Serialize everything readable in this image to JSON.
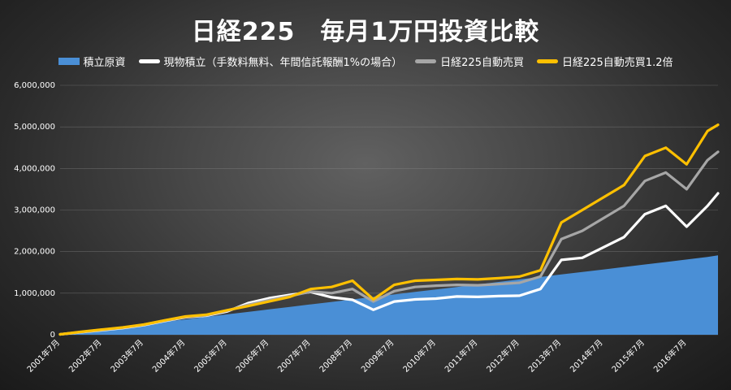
{
  "chart_data": {
    "type": "line",
    "title": "日経225　毎月1万円投資比較",
    "legend_position": "top",
    "grid": true,
    "ylim": [
      0,
      6000000
    ],
    "y_ticks": [
      "0",
      "1,000,000",
      "2,000,000",
      "3,000,000",
      "4,000,000",
      "5,000,000",
      "6,000,000"
    ],
    "x_ticks": [
      "2001年7月",
      "2002年7月",
      "2003年7月",
      "2004年7月",
      "2005年7月",
      "2006年7月",
      "2007年7月",
      "2008年7月",
      "2009年7月",
      "2010年7月",
      "2011年7月",
      "2012年7月",
      "2013年7月",
      "2014年7月",
      "2015年7月",
      "2016年7月"
    ],
    "x": [
      "2001-07",
      "2002-01",
      "2002-07",
      "2003-01",
      "2003-07",
      "2004-01",
      "2004-07",
      "2005-01",
      "2005-07",
      "2006-01",
      "2006-07",
      "2007-01",
      "2007-07",
      "2008-01",
      "2008-07",
      "2009-01",
      "2009-07",
      "2010-01",
      "2010-07",
      "2011-01",
      "2011-07",
      "2012-01",
      "2012-07",
      "2013-01",
      "2013-07",
      "2014-01",
      "2014-07",
      "2015-01",
      "2015-07",
      "2016-01",
      "2016-07",
      "2017-01",
      "2017-04"
    ],
    "series": [
      {
        "name": "積立原資",
        "kind": "area",
        "color": "#4a8fd6",
        "values": [
          10000,
          70000,
          130000,
          190000,
          250000,
          310000,
          370000,
          430000,
          490000,
          550000,
          610000,
          670000,
          730000,
          790000,
          850000,
          910000,
          970000,
          1030000,
          1090000,
          1150000,
          1210000,
          1270000,
          1330000,
          1390000,
          1450000,
          1510000,
          1570000,
          1630000,
          1690000,
          1750000,
          1810000,
          1870000,
          1910000
        ]
      },
      {
        "name": "現物積立（手数料無料、年間信託報酬1%の場合）",
        "kind": "line",
        "color": "#ffffff",
        "values": [
          10000,
          60000,
          110000,
          160000,
          230000,
          330000,
          420000,
          460000,
          560000,
          760000,
          880000,
          960000,
          1030000,
          900000,
          840000,
          600000,
          800000,
          850000,
          870000,
          920000,
          910000,
          930000,
          940000,
          1100000,
          1800000,
          1850000,
          2100000,
          2350000,
          2900000,
          3100000,
          2600000,
          3100000,
          3400000
        ]
      },
      {
        "name": "日経225自動売買",
        "kind": "line",
        "color": "#a6a6a6",
        "values": [
          10000,
          65000,
          120000,
          170000,
          240000,
          340000,
          430000,
          470000,
          580000,
          720000,
          830000,
          930000,
          1040000,
          1000000,
          1100000,
          800000,
          1050000,
          1150000,
          1180000,
          1200000,
          1190000,
          1220000,
          1250000,
          1400000,
          2300000,
          2500000,
          2800000,
          3100000,
          3700000,
          3900000,
          3500000,
          4200000,
          4400000
        ]
      },
      {
        "name": "日経225自動売買1.2倍",
        "kind": "line",
        "color": "#ffc000",
        "values": [
          10000,
          70000,
          125000,
          175000,
          245000,
          345000,
          440000,
          480000,
          590000,
          690000,
          800000,
          910000,
          1100000,
          1150000,
          1300000,
          850000,
          1200000,
          1300000,
          1320000,
          1340000,
          1330000,
          1360000,
          1400000,
          1550000,
          2700000,
          3000000,
          3300000,
          3600000,
          4300000,
          4500000,
          4100000,
          4900000,
          5050000
        ]
      }
    ]
  }
}
